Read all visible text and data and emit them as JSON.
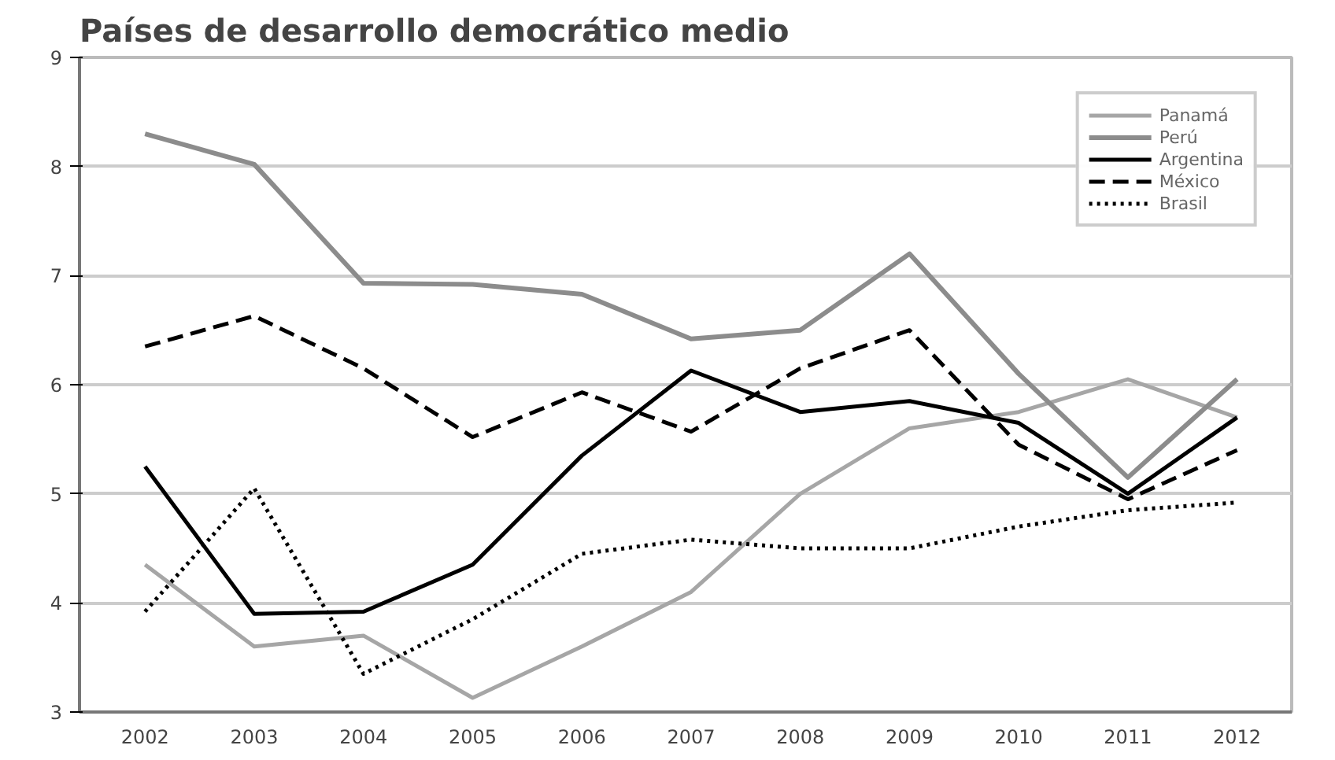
{
  "chart_data": {
    "type": "line",
    "title": "Países de desarrollo democrático medio",
    "categories": [
      "2002",
      "2003",
      "2004",
      "2005",
      "2006",
      "2007",
      "2008",
      "2009",
      "2010",
      "2011",
      "2012"
    ],
    "ylim": [
      3,
      9
    ],
    "yticks": [
      3,
      4,
      5,
      6,
      7,
      8,
      9
    ],
    "grid": "y",
    "legend": "top right",
    "marker": "none",
    "series": [
      {
        "name": "Panamá",
        "color": "#a6a6a6",
        "line_style": "solid",
        "values": [
          4.35,
          3.6,
          3.7,
          3.13,
          3.6,
          4.1,
          5.0,
          5.6,
          5.75,
          6.05,
          5.7
        ]
      },
      {
        "name": "Perú",
        "color": "#8c8c8c",
        "line_style": "solid",
        "values": [
          8.3,
          8.02,
          6.93,
          6.92,
          6.83,
          6.42,
          6.5,
          7.2,
          6.1,
          5.15,
          6.05
        ]
      },
      {
        "name": "Argentina",
        "color": "#000000",
        "line_style": "solid",
        "values": [
          5.25,
          3.9,
          3.92,
          4.35,
          5.35,
          6.13,
          5.75,
          5.85,
          5.65,
          5.0,
          5.7
        ]
      },
      {
        "name": "México",
        "color": "#000000",
        "line_style": "dashed",
        "values": [
          6.35,
          6.63,
          6.15,
          5.52,
          5.93,
          5.57,
          6.15,
          6.5,
          5.45,
          4.95,
          5.4
        ]
      },
      {
        "name": "Brasil",
        "color": "#000000",
        "line_style": "dotted",
        "values": [
          3.92,
          5.05,
          3.35,
          3.85,
          4.45,
          4.58,
          4.5,
          4.5,
          4.7,
          4.85,
          4.92
        ]
      }
    ]
  }
}
